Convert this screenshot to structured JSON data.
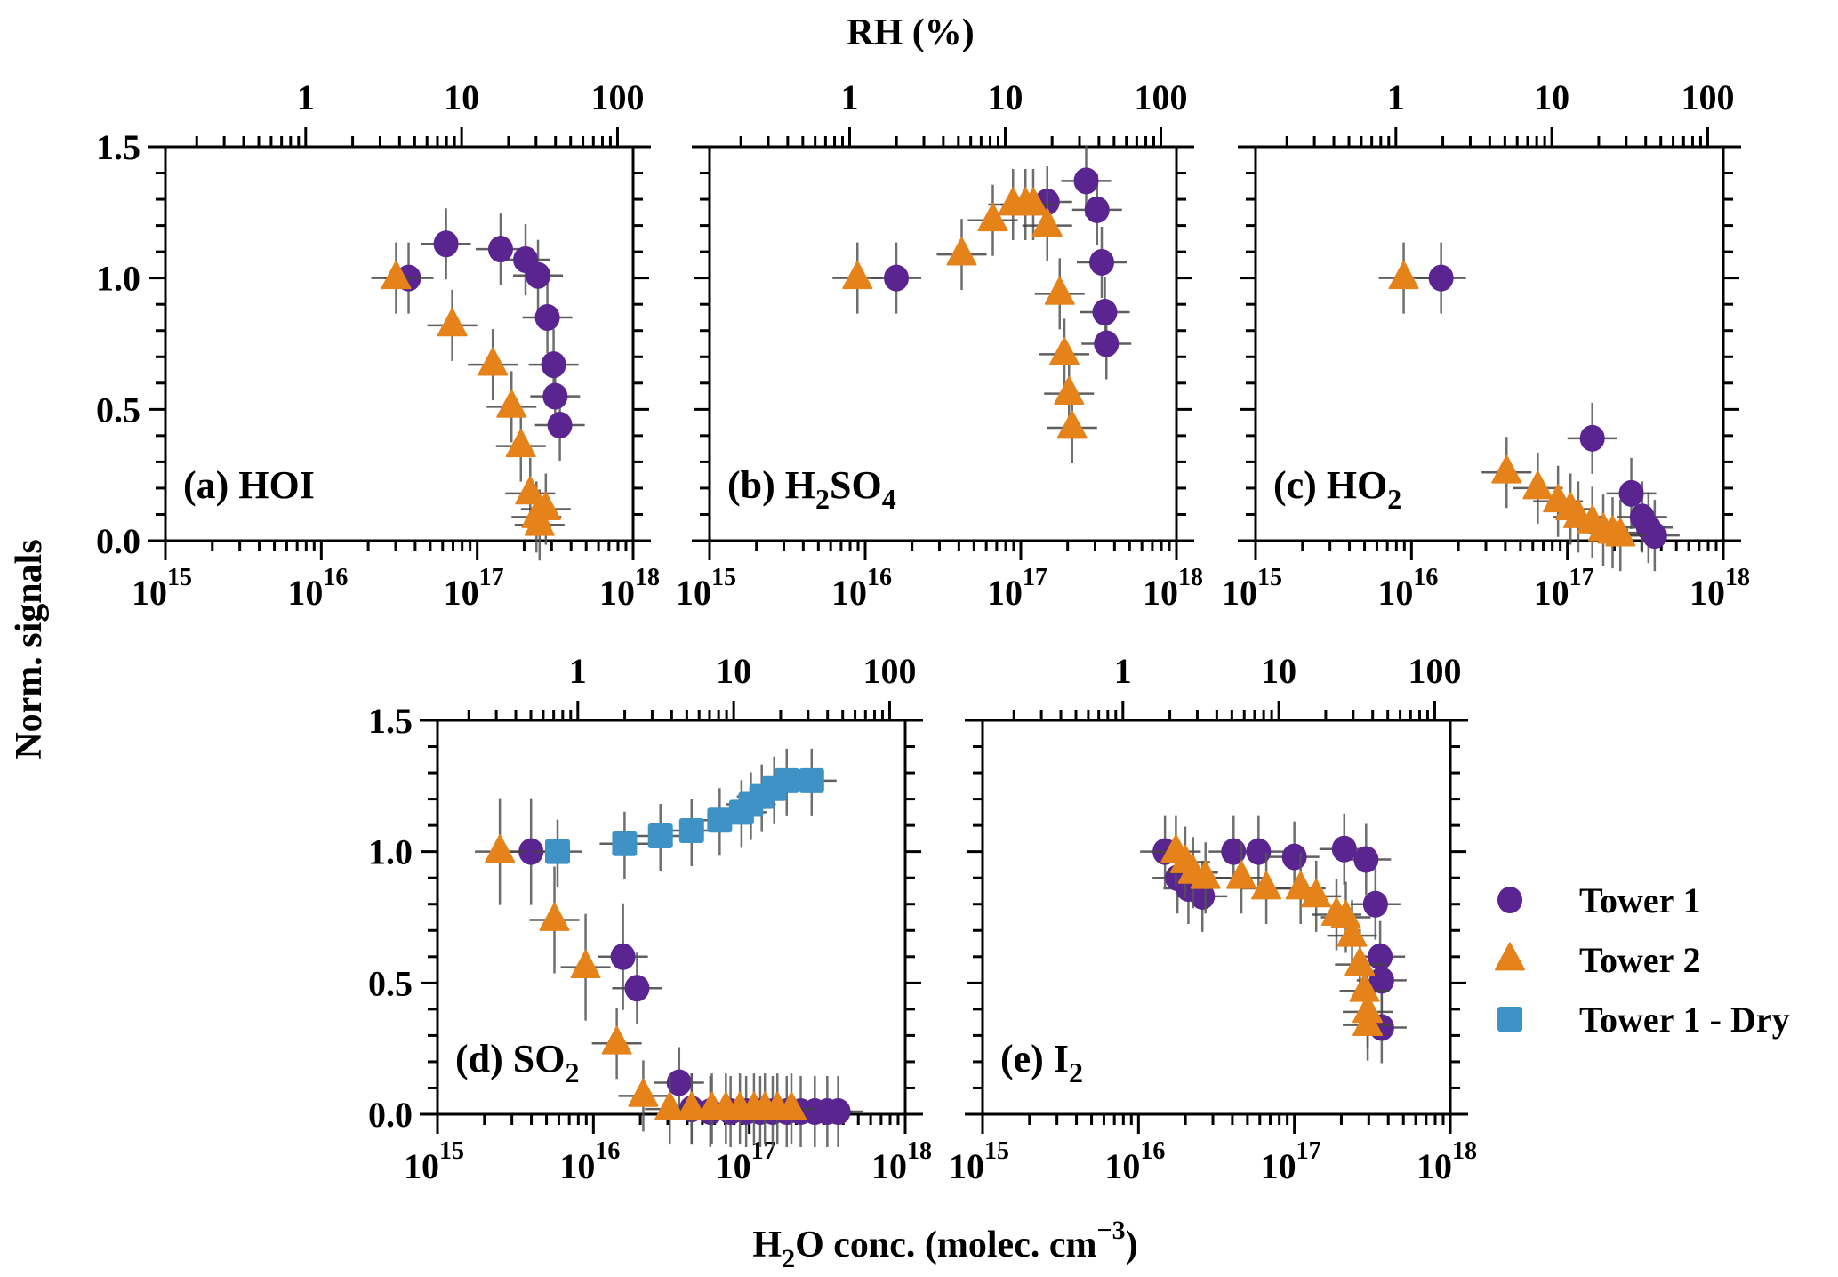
{
  "chart_data": {
    "type": "scatter",
    "title": "",
    "top_axis_title": "RH (%)",
    "xlabel": "H2O conc. (molec. cm-3)",
    "xlabel_parts": {
      "pre": "H",
      "sub": "2",
      "mid": "O conc. (molec. cm",
      "sup": "−3",
      "post": ")"
    },
    "ylabel": "Norm. signals",
    "x_scale": "log",
    "xlim_log10": [
      15,
      18
    ],
    "x_tick_labels": [
      {
        "base": "10",
        "exp": "15"
      },
      {
        "base": "10",
        "exp": "16"
      },
      {
        "base": "10",
        "exp": "17"
      },
      {
        "base": "10",
        "exp": "18"
      }
    ],
    "top_x_scale": "log",
    "top_tick_labels": [
      "1",
      "10",
      "100"
    ],
    "top_tick_values_rh": [
      1,
      10,
      100
    ],
    "rh1_at_log10_h2o": 15.9,
    "ylim": [
      0,
      1.5
    ],
    "y_tick_labels": [
      "0.0",
      "0.5",
      "1.0",
      "1.5"
    ],
    "y_ticks": [
      0,
      0.5,
      1.0,
      1.5
    ],
    "legend": {
      "placement": "right of panel (e)",
      "entries": [
        {
          "name": "Tower 1",
          "marker": "circle",
          "color": "#5a2590"
        },
        {
          "name": "Tower 2",
          "marker": "triangle",
          "color": "#e5821a"
        },
        {
          "name": "Tower 1 - Dry",
          "marker": "square",
          "color": "#3f92c6"
        }
      ]
    },
    "panels": [
      {
        "id": "a",
        "label": "(a) HOI",
        "label_parts": {
          "pre": "(a) HOI",
          "sub": "",
          "post": ""
        },
        "series": [
          {
            "name": "Tower 1",
            "points": [
              [
                16.56,
                1.0
              ],
              [
                16.8,
                1.13
              ],
              [
                17.15,
                1.11
              ],
              [
                17.31,
                1.07
              ],
              [
                17.39,
                1.01
              ],
              [
                17.45,
                0.85
              ],
              [
                17.49,
                0.67
              ],
              [
                17.5,
                0.55
              ],
              [
                17.53,
                0.44
              ]
            ]
          },
          {
            "name": "Tower 2",
            "points": [
              [
                16.48,
                1.0
              ],
              [
                16.84,
                0.82
              ],
              [
                17.1,
                0.67
              ],
              [
                17.22,
                0.51
              ],
              [
                17.28,
                0.36
              ],
              [
                17.34,
                0.18
              ],
              [
                17.44,
                0.12
              ],
              [
                17.38,
                0.09
              ],
              [
                17.4,
                0.06
              ]
            ]
          }
        ]
      },
      {
        "id": "b",
        "label": "(b) H2SO4",
        "label_parts": {
          "pre": "(b) H",
          "sub": "2",
          "mid": "SO",
          "sub2": "4"
        },
        "series": [
          {
            "name": "Tower 1",
            "points": [
              [
                16.2,
                1.0
              ],
              [
                17.17,
                1.29
              ],
              [
                17.42,
                1.37
              ],
              [
                17.49,
                1.26
              ],
              [
                17.52,
                1.06
              ],
              [
                17.54,
                0.87
              ],
              [
                17.55,
                0.75
              ]
            ]
          },
          {
            "name": "Tower 2",
            "points": [
              [
                15.95,
                1.0
              ],
              [
                16.62,
                1.09
              ],
              [
                16.82,
                1.22
              ],
              [
                16.95,
                1.28
              ],
              [
                17.03,
                1.28
              ],
              [
                17.08,
                1.28
              ],
              [
                17.17,
                1.2
              ],
              [
                17.25,
                0.94
              ],
              [
                17.28,
                0.71
              ],
              [
                17.31,
                0.56
              ],
              [
                17.33,
                0.43
              ]
            ]
          }
        ]
      },
      {
        "id": "c",
        "label": "(c) HO2",
        "label_parts": {
          "pre": "(c) HO",
          "sub": "2"
        },
        "series": [
          {
            "name": "Tower 1",
            "points": [
              [
                16.19,
                1.0
              ],
              [
                17.16,
                0.39
              ],
              [
                17.41,
                0.18
              ],
              [
                17.48,
                0.09
              ],
              [
                17.52,
                0.05
              ],
              [
                17.56,
                0.02
              ]
            ]
          },
          {
            "name": "Tower 2",
            "points": [
              [
                15.95,
                1.0
              ],
              [
                16.61,
                0.26
              ],
              [
                16.81,
                0.2
              ],
              [
                16.94,
                0.15
              ],
              [
                17.02,
                0.12
              ],
              [
                17.07,
                0.09
              ],
              [
                17.16,
                0.07
              ],
              [
                17.23,
                0.04
              ],
              [
                17.29,
                0.03
              ],
              [
                17.34,
                0.02
              ]
            ]
          }
        ]
      },
      {
        "id": "d",
        "label": "(d) SO2",
        "label_parts": {
          "pre": "(d) SO",
          "sub": "2"
        },
        "series": [
          {
            "name": "Tower 1",
            "points": [
              [
                15.6,
                1.0
              ],
              [
                16.19,
                0.6
              ],
              [
                16.28,
                0.48
              ],
              [
                16.55,
                0.12
              ],
              [
                16.63,
                0.02
              ],
              [
                16.75,
                0.01
              ],
              [
                16.88,
                0.01
              ],
              [
                16.98,
                0.01
              ],
              [
                17.07,
                0.01
              ],
              [
                17.15,
                0.01
              ],
              [
                17.24,
                0.01
              ],
              [
                17.33,
                0.01
              ],
              [
                17.42,
                0.01
              ],
              [
                17.5,
                0.01
              ],
              [
                17.57,
                0.01
              ]
            ]
          },
          {
            "name": "Tower 2",
            "points": [
              [
                15.4,
                1.0
              ],
              [
                15.75,
                0.74
              ],
              [
                15.95,
                0.56
              ],
              [
                16.15,
                0.27
              ],
              [
                16.32,
                0.07
              ],
              [
                16.49,
                0.02
              ],
              [
                16.63,
                0.02
              ],
              [
                16.76,
                0.02
              ],
              [
                16.85,
                0.02
              ],
              [
                16.94,
                0.02
              ],
              [
                17.03,
                0.02
              ],
              [
                17.1,
                0.02
              ],
              [
                17.18,
                0.02
              ],
              [
                17.27,
                0.02
              ]
            ]
          },
          {
            "name": "Tower 1 - Dry",
            "points": [
              [
                15.77,
                1.0
              ],
              [
                16.2,
                1.03
              ],
              [
                16.43,
                1.06
              ],
              [
                16.63,
                1.08
              ],
              [
                16.81,
                1.12
              ],
              [
                16.95,
                1.15
              ],
              [
                17.01,
                1.18
              ],
              [
                17.08,
                1.21
              ],
              [
                17.16,
                1.24
              ],
              [
                17.24,
                1.27
              ],
              [
                17.4,
                1.27
              ]
            ]
          }
        ]
      },
      {
        "id": "e",
        "label": "(e) I2",
        "label_parts": {
          "pre": "(e) I",
          "sub": "2"
        },
        "series": [
          {
            "name": "Tower 1",
            "points": [
              [
                16.17,
                1.0
              ],
              [
                16.25,
                0.9
              ],
              [
                16.32,
                0.86
              ],
              [
                16.41,
                0.83
              ],
              [
                16.61,
                1.0
              ],
              [
                16.77,
                1.0
              ],
              [
                17.0,
                0.98
              ],
              [
                17.32,
                1.01
              ],
              [
                17.46,
                0.97
              ],
              [
                17.52,
                0.8
              ],
              [
                17.55,
                0.6
              ],
              [
                17.56,
                0.51
              ],
              [
                17.56,
                0.33
              ]
            ]
          },
          {
            "name": "Tower 2",
            "points": [
              [
                16.24,
                1.0
              ],
              [
                16.3,
                0.96
              ],
              [
                16.35,
                0.92
              ],
              [
                16.43,
                0.9
              ],
              [
                16.66,
                0.9
              ],
              [
                16.82,
                0.86
              ],
              [
                17.04,
                0.86
              ],
              [
                17.14,
                0.83
              ],
              [
                17.27,
                0.76
              ],
              [
                17.33,
                0.75
              ],
              [
                17.37,
                0.68
              ],
              [
                17.42,
                0.57
              ],
              [
                17.45,
                0.47
              ],
              [
                17.47,
                0.39
              ],
              [
                17.47,
                0.34
              ]
            ]
          }
        ]
      }
    ]
  }
}
